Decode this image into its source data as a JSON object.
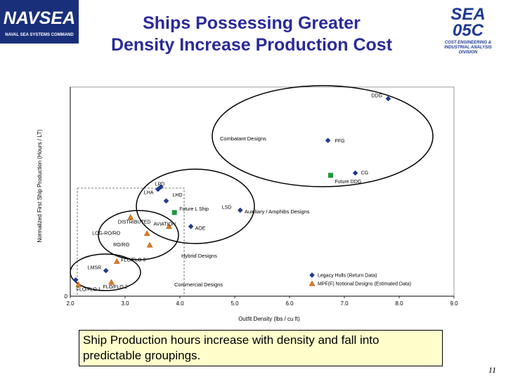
{
  "header": {
    "title_line1": "Ships Possessing Greater",
    "title_line2": "Density Increase Production Cost",
    "logo_left": {
      "name": "NAVSEA",
      "subtitle": "NAVAL SEA SYSTEMS COMMAND"
    },
    "logo_right": {
      "line1": "SEA",
      "line2": "05C",
      "sub1": "COST ENGINEERING &",
      "sub2": "INDUSTRIAL ANALYSIS",
      "sub3": "DIVISION"
    }
  },
  "colors": {
    "title": "#2a2a9a",
    "legacy": "#1f3a93",
    "notional": "#e07a1f",
    "future": "#1a9a3a",
    "caption_bg": "#ffffcc"
  },
  "chart_data": {
    "type": "scatter",
    "xlabel": "Outfit Density (lbs / cu ft)",
    "ylabel": "Normalized First Ship Production (Hours / LT)",
    "xlim": [
      2.0,
      9.0
    ],
    "x_ticks": [
      "2.0",
      "3.0",
      "4.0",
      "5.0",
      "6.0",
      "7.0",
      "8.0",
      "9.0"
    ],
    "y_zero_label": "0",
    "grid": false,
    "legend_position": "bottom-right",
    "legend": [
      {
        "marker": "diamond",
        "label": "Legacy Hulls (Return Data)"
      },
      {
        "marker": "triangle",
        "label": "MPF(F) Notional Designs (Estimated Data)"
      }
    ],
    "group_labels": [
      "Combatant Designs",
      "Auxiliary / Amphibs Designs",
      "Hybrid Designs",
      "Commercial Designs"
    ],
    "series": [
      {
        "name": "Legacy Hulls (Return Data)",
        "points": [
          {
            "label": "DDG",
            "x": 7.8,
            "y": 0.85
          },
          {
            "label": "FFG",
            "x": 6.7,
            "y": 0.67
          },
          {
            "label": "CG",
            "x": 7.2,
            "y": 0.53
          },
          {
            "label": "LPD",
            "x": 3.65,
            "y": 0.47
          },
          {
            "label": "LHA",
            "x": 3.6,
            "y": 0.46
          },
          {
            "label": "LHD",
            "x": 3.75,
            "y": 0.41
          },
          {
            "label": "LSD",
            "x": 5.1,
            "y": 0.37
          },
          {
            "label": "AOE",
            "x": 4.2,
            "y": 0.3
          },
          {
            "label": "LMSR",
            "x": 2.65,
            "y": 0.11
          },
          {
            "label": "",
            "x": 2.1,
            "y": 0.07
          }
        ]
      },
      {
        "name": "MPF(F) Notional Designs (Estimated Data)",
        "points": [
          {
            "label": "DISTRIBUTED",
            "x": 3.1,
            "y": 0.34
          },
          {
            "label": "LOG-RO/RO",
            "x": 3.4,
            "y": 0.27
          },
          {
            "label": "AVIATION",
            "x": 3.8,
            "y": 0.3
          },
          {
            "label": "RO/RO",
            "x": 3.45,
            "y": 0.22
          },
          {
            "label": "FLO/FLO 3",
            "x": 2.85,
            "y": 0.15
          },
          {
            "label": "FLO/FLO 1",
            "x": 2.15,
            "y": 0.05
          },
          {
            "label": "FLO/FLO 2",
            "x": 2.75,
            "y": 0.06
          }
        ]
      },
      {
        "name": "",
        "points": [
          {
            "label": "Future DDG",
            "x": 6.75,
            "y": 0.52
          },
          {
            "label": "Future L Ship",
            "x": 3.9,
            "y": 0.36
          }
        ]
      }
    ]
  },
  "caption": "Ship Production hours increase with density and fall into predictable groupings.",
  "page_number": "11"
}
